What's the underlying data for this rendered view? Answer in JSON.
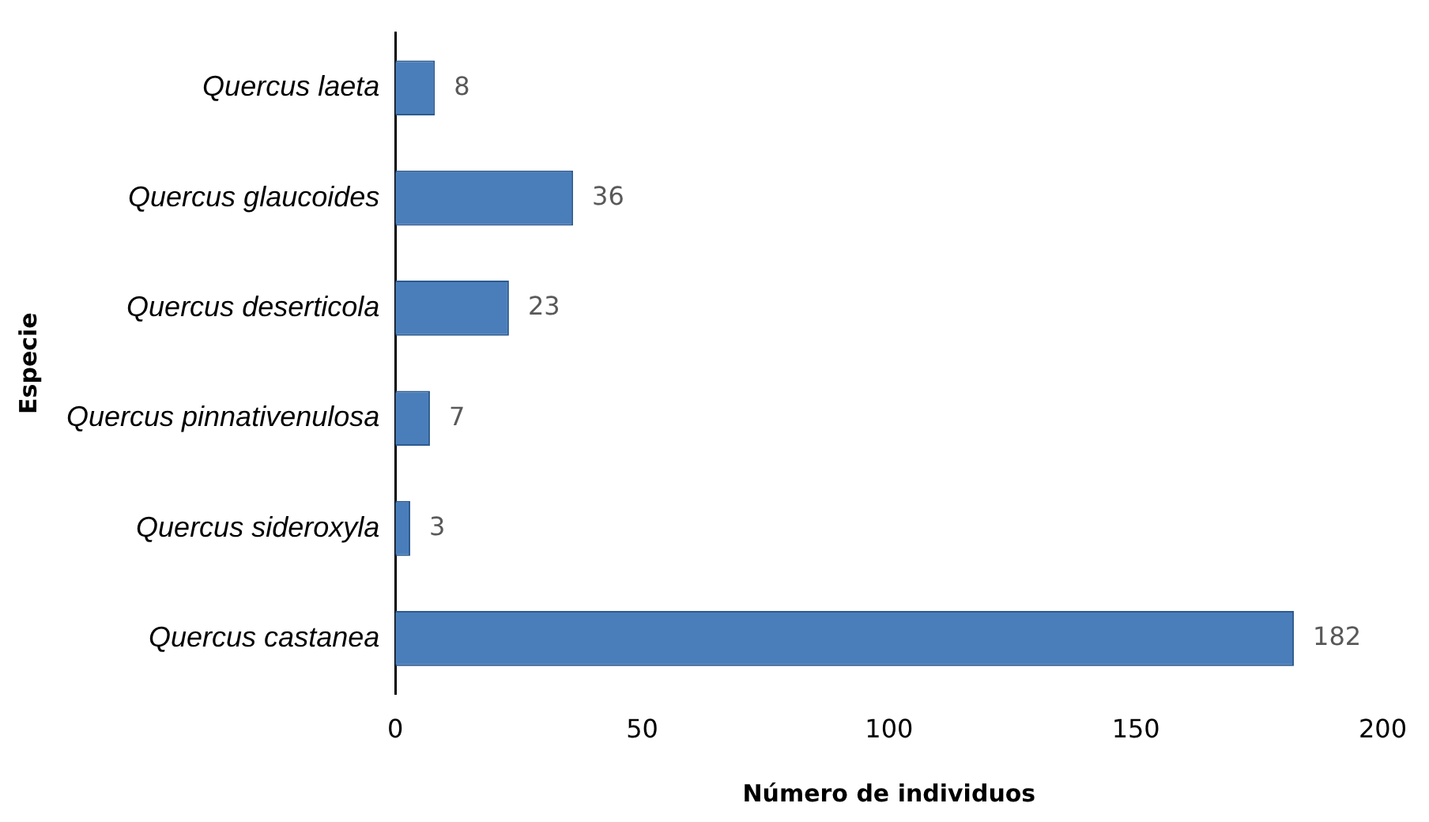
{
  "chart_data": {
    "type": "bar",
    "orientation": "horizontal",
    "xlabel": "Número de individuos",
    "ylabel": "Especie",
    "categories": [
      "Quercus laeta",
      "Quercus glaucoides",
      "Quercus deserticola",
      "Quercus pinnativenulosa",
      "Quercus sideroxyla",
      "Quercus castanea"
    ],
    "values": [
      8,
      36,
      23,
      7,
      3,
      182
    ],
    "color": "#4a7ebb",
    "xlim": [
      0,
      200
    ],
    "xticks": [
      0,
      50,
      100,
      150,
      200
    ],
    "grid": false,
    "legend": false,
    "data_labels": true
  }
}
